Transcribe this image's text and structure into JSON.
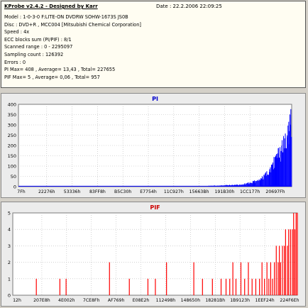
{
  "header": {
    "app_title": "KProbe v2.4.2 - Designed by Karr",
    "date": "Date : 22.2.2006 22:09:25",
    "lines": [
      "Model : 1-0-3-0 F:LITE-ON DVDRW SOHW-1673S JS0B",
      "Disc : DVD+R , MCC004 [Mitsubishi Chemical Corporation]",
      "Speed : 4x",
      "ECC blocks sum (PI/PIF) : 8/1",
      "Scanned range : 0 - 2295097",
      "Sampling count : 126392",
      "Errors : 0",
      "PI Max= 408 , Average= 13,43 , Total= 227655",
      "PIF Max= 5 , Average= 0,06 , Total= 957"
    ]
  },
  "colors": {
    "pi": "#0000ff",
    "pif": "#ff0000",
    "plot_bg": "#ffffff",
    "grid": "#b8b8b8",
    "pi_title": "#0000cc",
    "pif_title": "#cc0000"
  },
  "chart_data": [
    {
      "type": "bar",
      "title": "PI",
      "ylim": [
        0,
        400
      ],
      "yticks": [
        0,
        50,
        100,
        150,
        200,
        250,
        300,
        350,
        400
      ],
      "xlim": [
        0,
        2295097
      ],
      "xtick_labels": [
        "7Fh",
        "22276h",
        "53336h",
        "83FF8h",
        "B5C30h",
        "E7754h",
        "11C927h",
        "15663Bh",
        "191B30h",
        "1CC177h",
        "20697Fh"
      ],
      "grid": true,
      "series": [
        {
          "baseline": 2,
          "points": [
            [
              1600000,
              5
            ],
            [
              1650000,
              6
            ],
            [
              1700000,
              7
            ],
            [
              1750000,
              9
            ],
            [
              1800000,
              10
            ],
            [
              1840000,
              12
            ],
            [
              1870000,
              14
            ],
            [
              1900000,
              17
            ],
            [
              1925000,
              20
            ],
            [
              1950000,
              24
            ],
            [
              1970000,
              28
            ],
            [
              1990000,
              33
            ],
            [
              2010000,
              40
            ],
            [
              2030000,
              48
            ],
            [
              2050000,
              58
            ],
            [
              2065000,
              68
            ],
            [
              2080000,
              80
            ],
            [
              2095000,
              95
            ],
            [
              2110000,
              110
            ],
            [
              2125000,
              125
            ],
            [
              2140000,
              140
            ],
            [
              2155000,
              158
            ],
            [
              2170000,
              175
            ],
            [
              2185000,
              195
            ],
            [
              2200000,
              215
            ],
            [
              2215000,
              240
            ],
            [
              2230000,
              265
            ],
            [
              2245000,
              295
            ],
            [
              2258000,
              320
            ],
            [
              2270000,
              345
            ],
            [
              2280000,
              370
            ],
            [
              2288000,
              395
            ],
            [
              2295097,
              408
            ]
          ]
        }
      ]
    },
    {
      "type": "bar",
      "title": "PIF",
      "ylim": [
        0,
        5
      ],
      "yticks": [
        0,
        1,
        2,
        3,
        4,
        5
      ],
      "xlim": [
        0,
        2295097
      ],
      "xtick_labels": [
        "12h",
        "207E8h",
        "4E002h",
        "7CE8Fh",
        "AF769h",
        "E08E2h",
        "112498h",
        "148650h",
        "18281Bh",
        "1B9123h",
        "1EEF24h",
        "224F6Eh"
      ],
      "grid": true,
      "series": [
        {
          "bars": [
            [
              190000,
              1
            ],
            [
              380000,
              1
            ],
            [
              430000,
              1
            ],
            [
              780000,
              2
            ],
            [
              940000,
              1
            ],
            [
              1090000,
              1
            ],
            [
              1150000,
              1
            ],
            [
              1240000,
              2
            ],
            [
              1460000,
              2
            ],
            [
              1530000,
              1
            ],
            [
              1610000,
              1
            ],
            [
              1680000,
              1
            ],
            [
              1720000,
              1
            ],
            [
              1750000,
              1
            ],
            [
              1775000,
              2
            ],
            [
              1800000,
              1
            ],
            [
              1840000,
              2
            ],
            [
              1870000,
              1
            ],
            [
              1900000,
              2
            ],
            [
              1930000,
              1
            ],
            [
              1960000,
              1
            ],
            [
              1990000,
              1
            ],
            [
              2010000,
              2
            ],
            [
              2030000,
              1
            ],
            [
              2050000,
              2
            ],
            [
              2065000,
              1
            ],
            [
              2080000,
              2
            ],
            [
              2095000,
              1
            ],
            [
              2110000,
              2
            ],
            [
              2125000,
              3
            ],
            [
              2140000,
              2
            ],
            [
              2150000,
              3
            ],
            [
              2160000,
              2
            ],
            [
              2175000,
              3
            ],
            [
              2190000,
              3
            ],
            [
              2200000,
              4
            ],
            [
              2215000,
              3
            ],
            [
              2225000,
              4
            ],
            [
              2240000,
              4
            ],
            [
              2255000,
              4
            ],
            [
              2265000,
              5
            ],
            [
              2275000,
              4
            ],
            [
              2285000,
              5
            ],
            [
              2295097,
              5
            ]
          ]
        }
      ]
    }
  ]
}
